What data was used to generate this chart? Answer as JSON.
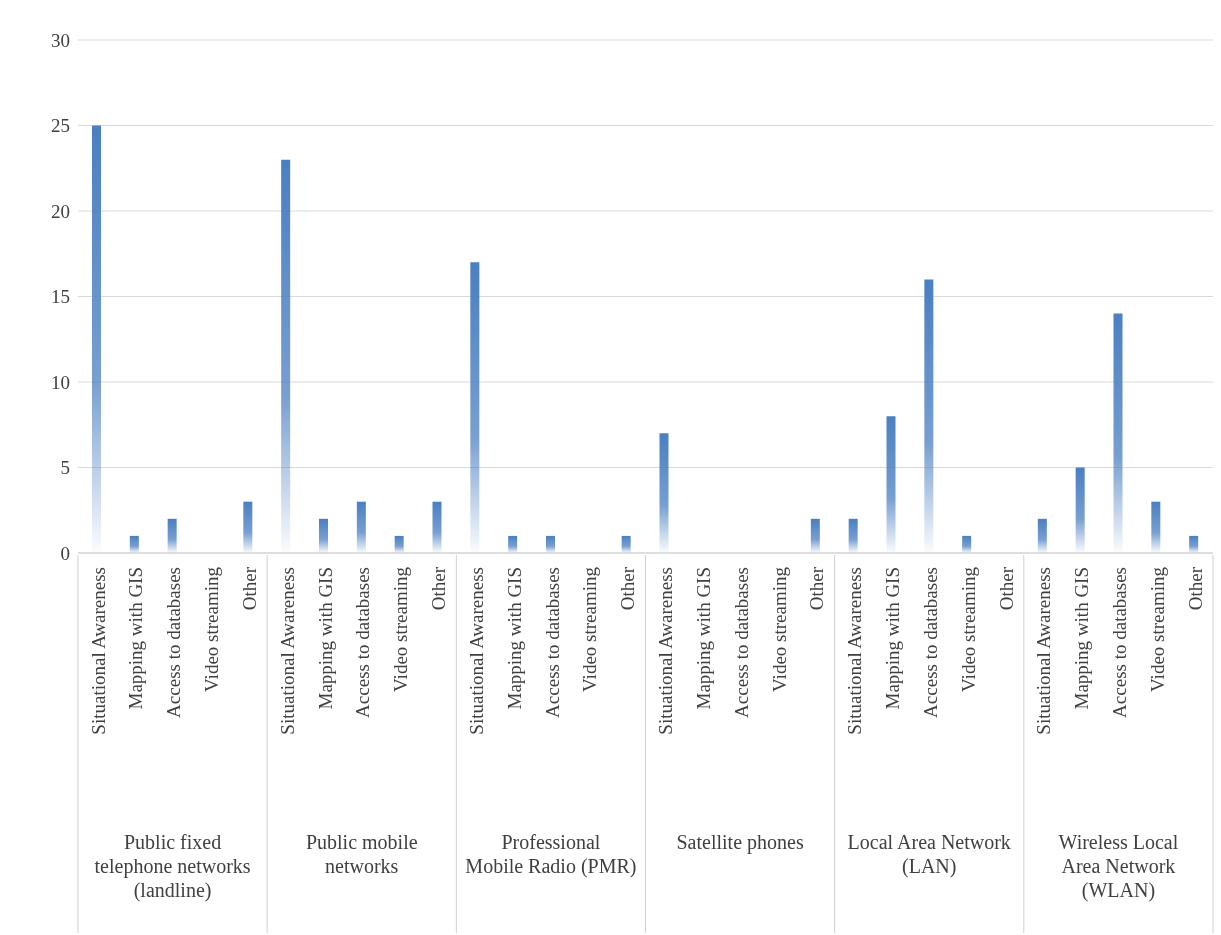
{
  "chart_data": {
    "type": "bar",
    "categories": [
      "Situational Awareness",
      "Mapping with GIS",
      "Access to databases",
      "Video streaming",
      "Other",
      "Situational Awareness",
      "Mapping with GIS",
      "Access to databases",
      "Video streaming",
      "Other",
      "Situational Awareness",
      "Mapping with GIS",
      "Access to databases",
      "Video streaming",
      "Other",
      "Situational Awareness",
      "Mapping with GIS",
      "Access to databases",
      "Video streaming",
      "Other",
      "Situational Awareness",
      "Mapping with GIS",
      "Access to databases",
      "Video streaming",
      "Other",
      "Situational Awareness",
      "Mapping with GIS",
      "Access to databases",
      "Video streaming",
      "Other"
    ],
    "values": [
      25,
      1,
      2,
      0,
      3,
      23,
      2,
      3,
      1,
      3,
      17,
      1,
      1,
      0,
      1,
      7,
      0,
      0,
      0,
      2,
      2,
      8,
      16,
      1,
      0,
      2,
      5,
      14,
      3,
      1
    ],
    "color": "#4a7fc1",
    "annotations": [
      "Public fixed telephone networks (landline)",
      "Public mobile networks",
      "Professional Mobile Radio (PMR)",
      "Satellite phones",
      "Local Area Network (LAN)",
      "Wireless Local Area Network (WLAN)"
    ],
    "ylim": [
      0,
      30
    ],
    "yticks": [
      0,
      5,
      10,
      15,
      20,
      25,
      30
    ],
    "grid": "y",
    "legend": false
  }
}
